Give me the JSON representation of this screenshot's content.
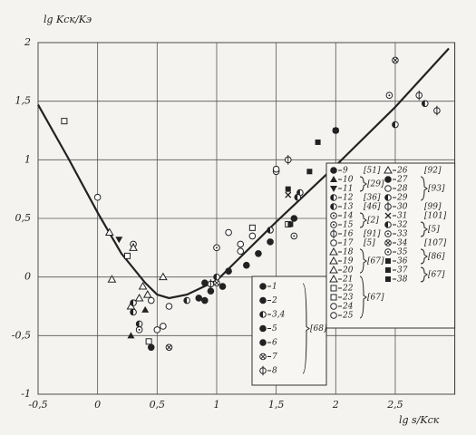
{
  "chart_data": {
    "type": "scatter",
    "y_label": "lg Kск/Kэ",
    "x_label": "lg s/Kск",
    "xlim": [
      -0.5,
      3.0
    ],
    "ylim": [
      -1,
      2
    ],
    "xticks": [
      {
        "value": -0.5,
        "label": "-0,5"
      },
      0,
      {
        "value": 0.5,
        "label": "0,5"
      },
      1,
      {
        "value": 1.5,
        "label": "1,5"
      },
      2,
      {
        "value": 2.5,
        "label": "2,5"
      }
    ],
    "yticks": [
      -1,
      {
        "value": -0.5,
        "label": "-0,5"
      },
      0,
      {
        "value": 0.5,
        "label": "0,5"
      },
      1,
      {
        "value": 1.5,
        "label": "1,5"
      },
      2
    ],
    "grid": true,
    "color": "#222",
    "curve": {
      "x": [
        -0.5,
        -0.25,
        0,
        0.2,
        0.4,
        0.5,
        0.6,
        0.75,
        1,
        1.5,
        2,
        2.5,
        2.95
      ],
      "values": [
        1.47,
        1.02,
        0.55,
        0.2,
        -0.05,
        -0.15,
        -0.18,
        -0.15,
        -0.03,
        0.47,
        0.95,
        1.45,
        1.95
      ]
    },
    "series": [
      {
        "name": "1",
        "marker": "circle-filled",
        "ref": "[68]",
        "x": [
          0.85,
          1.05
        ],
        "values": [
          -0.18,
          -0.08
        ]
      },
      {
        "name": "2",
        "marker": "circle-filled",
        "x": [
          0.95,
          1.25
        ],
        "values": [
          -0.12,
          0.1
        ]
      },
      {
        "name": "3,4",
        "marker": "circle-half",
        "x": [
          0.75,
          1.0
        ],
        "values": [
          -0.2,
          0.0
        ]
      },
      {
        "name": "5",
        "marker": "circle-filled",
        "x": [
          1.1
        ],
        "values": [
          0.05
        ]
      },
      {
        "name": "6",
        "marker": "circle-filled",
        "x": [
          0.9
        ],
        "values": [
          -0.2
        ]
      },
      {
        "name": "7",
        "marker": "circle-cross",
        "x": [
          1.0
        ],
        "values": [
          -0.05
        ]
      },
      {
        "name": "8",
        "marker": "circle-bar",
        "x": [
          0.95
        ],
        "values": [
          -0.06
        ]
      },
      {
        "name": "9",
        "marker": "circle-filled",
        "ref": "[51]",
        "x": [
          0.45,
          1.45,
          1.35
        ],
        "values": [
          -0.6,
          0.3,
          0.2
        ]
      },
      {
        "name": "10",
        "marker": "triangle-filled",
        "ref": "[29]",
        "x": [
          0.28,
          0.4
        ],
        "values": [
          -0.5,
          -0.28
        ]
      },
      {
        "name": "11",
        "marker": "triangle-down",
        "x": [
          0.18
        ],
        "values": [
          0.32
        ]
      },
      {
        "name": "12",
        "marker": "circle-half",
        "ref": "[36]",
        "x": [
          0.3,
          2.0,
          1.45
        ],
        "values": [
          -0.3,
          1.25,
          0.4
        ]
      },
      {
        "name": "13",
        "marker": "circle-half",
        "ref": "[46]",
        "x": [
          2.5,
          1.7
        ],
        "values": [
          1.3,
          0.72
        ]
      },
      {
        "name": "14",
        "marker": "circle-dot",
        "ref": "[2]",
        "x": [
          1.5,
          0.3
        ],
        "values": [
          0.9,
          0.28
        ]
      },
      {
        "name": "15",
        "marker": "circle-dot",
        "x": [
          2.45,
          1.0
        ],
        "values": [
          1.55,
          0.25
        ]
      },
      {
        "name": "16",
        "marker": "circle-bar",
        "ref": "[91]",
        "x": [
          1.6
        ],
        "values": [
          1.0
        ]
      },
      {
        "name": "17",
        "marker": "circle-open",
        "ref": "[5]",
        "x": [
          0.5,
          0.45
        ],
        "values": [
          -0.45,
          -0.2
        ]
      },
      {
        "name": "18",
        "marker": "triangle-open",
        "ref": "[67]",
        "x": [
          0.1,
          0.12,
          0.35
        ],
        "values": [
          0.38,
          -0.02,
          -0.18
        ]
      },
      {
        "name": "19",
        "marker": "triangle-open",
        "x": [
          0.28,
          0.55
        ],
        "values": [
          -0.25,
          0.0
        ]
      },
      {
        "name": "20",
        "marker": "triangle-open",
        "x": [
          0.42
        ],
        "values": [
          -0.15
        ]
      },
      {
        "name": "21",
        "marker": "triangle-open",
        "ref": "[67]",
        "x": [
          0.3
        ],
        "values": [
          0.25
        ]
      },
      {
        "name": "22",
        "marker": "square-open",
        "x": [
          0.43,
          1.3
        ],
        "values": [
          -0.55,
          0.42
        ]
      },
      {
        "name": "23",
        "marker": "square-open",
        "x": [
          1.6,
          0.25,
          -0.28
        ],
        "values": [
          0.45,
          0.18,
          1.33
        ]
      },
      {
        "name": "24",
        "marker": "circle-open",
        "x": [
          1.2,
          1.1,
          0.0
        ],
        "values": [
          0.22,
          0.38,
          0.68
        ]
      },
      {
        "name": "25",
        "marker": "circle-open",
        "x": [
          0.6,
          1.3,
          1.5
        ],
        "values": [
          -0.25,
          0.35,
          0.92
        ]
      },
      {
        "name": "26",
        "marker": "triangle-open",
        "ref": "[92]",
        "x": [
          0.38
        ],
        "values": [
          -0.08
        ]
      },
      {
        "name": "27",
        "marker": "circle-filled",
        "ref": "[93]",
        "x": [
          0.9,
          1.65
        ],
        "values": [
          -0.05,
          0.5
        ]
      },
      {
        "name": "28",
        "marker": "circle-open",
        "x": [
          1.2,
          0.55
        ],
        "values": [
          0.28,
          -0.42
        ]
      },
      {
        "name": "29",
        "marker": "circle-half",
        "x": [
          2.75,
          1.68
        ],
        "values": [
          1.48,
          0.68
        ]
      },
      {
        "name": "30",
        "marker": "circle-bar",
        "ref": "[99]",
        "x": [
          2.85,
          2.7
        ],
        "values": [
          1.42,
          1.55
        ]
      },
      {
        "name": "31",
        "marker": "cross",
        "ref": "[101]",
        "x": [
          1.6
        ],
        "values": [
          0.7
        ]
      },
      {
        "name": "32",
        "marker": "circle-half",
        "ref": "[5]",
        "x": [
          0.3,
          0.35
        ],
        "values": [
          -0.22,
          -0.4
        ]
      },
      {
        "name": "33",
        "marker": "circle-dot",
        "x": [
          0.35
        ],
        "values": [
          -0.45
        ]
      },
      {
        "name": "34",
        "marker": "circle-cross",
        "ref": "[107]",
        "x": [
          0.6,
          2.5
        ],
        "values": [
          -0.6,
          1.85
        ]
      },
      {
        "name": "35",
        "marker": "circle-dot",
        "ref": "[86]",
        "x": [
          1.65
        ],
        "values": [
          0.35
        ]
      },
      {
        "name": "36",
        "marker": "square-filled",
        "x": [
          1.85,
          2.0,
          1.6
        ],
        "values": [
          1.15,
          1.25,
          0.75
        ]
      },
      {
        "name": "37",
        "marker": "square-filled",
        "ref": "[67]",
        "x": [
          1.62
        ],
        "values": [
          0.45
        ]
      },
      {
        "name": "38",
        "marker": "square-filled",
        "x": [
          1.78
        ],
        "values": [
          0.9
        ]
      }
    ]
  }
}
